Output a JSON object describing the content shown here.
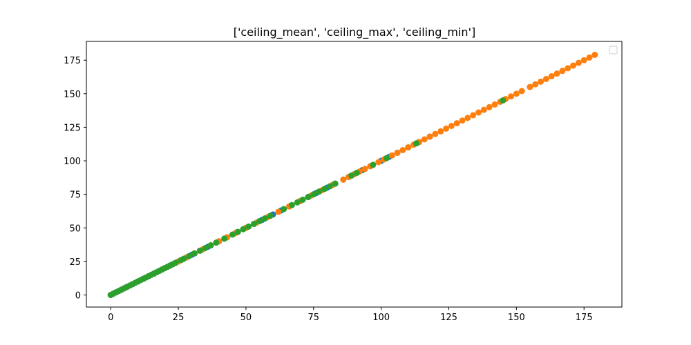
{
  "chart_data": {
    "type": "scatter",
    "title": "['ceiling_mean', 'ceiling_max', 'ceiling_min']",
    "xlabel": "",
    "ylabel": "",
    "xlim": [
      -9,
      189
    ],
    "ylim": [
      -9,
      189
    ],
    "x_ticks": [
      0,
      25,
      50,
      75,
      100,
      125,
      150,
      175
    ],
    "y_ticks": [
      0,
      25,
      50,
      75,
      100,
      125,
      150,
      175
    ],
    "x_tick_labels": [
      "0",
      "25",
      "50",
      "75",
      "100",
      "125",
      "150",
      "175"
    ],
    "y_tick_labels": [
      "0",
      "25",
      "50",
      "75",
      "100",
      "125",
      "150",
      "175"
    ],
    "grid": false,
    "legend": {
      "position": "top-right",
      "entries": []
    },
    "series": [
      {
        "color": "#1f77b4",
        "x": [
          0,
          1,
          2,
          3,
          4,
          5,
          6,
          8,
          10,
          12,
          14,
          16,
          18,
          20,
          22,
          25,
          28,
          30,
          33,
          36,
          40,
          43,
          47,
          50,
          53,
          56,
          60,
          63,
          66,
          70,
          73,
          76,
          80,
          83,
          86,
          88,
          90,
          93,
          96,
          100,
          103,
          106,
          110,
          114,
          118
        ],
        "y": [
          0,
          1,
          2,
          3,
          4,
          5,
          6,
          8,
          10,
          12,
          14,
          16,
          18,
          20,
          22,
          25,
          28,
          30,
          33,
          36,
          40,
          43,
          47,
          50,
          53,
          56,
          60,
          63,
          66,
          70,
          73,
          76,
          80,
          83,
          86,
          88,
          90,
          93,
          96,
          100,
          103,
          106,
          110,
          114,
          118
        ]
      },
      {
        "color": "#ff7f0e",
        "x": [
          0,
          2,
          4,
          6,
          8,
          10,
          13,
          16,
          19,
          22,
          25,
          28,
          31,
          34,
          37,
          40,
          43,
          46,
          50,
          54,
          58,
          62,
          66,
          70,
          74,
          78,
          82,
          86,
          88,
          90,
          92,
          94,
          96,
          99,
          101,
          104,
          106,
          108,
          110,
          112,
          114,
          116,
          118,
          120,
          122,
          124,
          126,
          128,
          130,
          132,
          134,
          136,
          138,
          140,
          142,
          144,
          146,
          148,
          150,
          152,
          155,
          157,
          159,
          161,
          163,
          165,
          167,
          169,
          171,
          173,
          175,
          177,
          179
        ],
        "y": [
          0,
          2,
          4,
          6,
          8,
          10,
          13,
          16,
          19,
          22,
          25,
          28,
          31,
          34,
          37,
          40,
          43,
          46,
          50,
          54,
          58,
          62,
          66,
          70,
          74,
          78,
          82,
          86,
          88,
          90,
          92,
          94,
          96,
          99,
          101,
          104,
          106,
          108,
          110,
          112,
          114,
          116,
          118,
          120,
          122,
          124,
          126,
          128,
          130,
          132,
          134,
          136,
          138,
          140,
          142,
          144,
          146,
          148,
          150,
          152,
          155,
          157,
          159,
          161,
          163,
          165,
          167,
          169,
          171,
          173,
          175,
          177,
          179
        ]
      },
      {
        "color": "#2ca02c",
        "x": [
          0,
          1,
          2,
          3,
          4,
          5,
          6,
          7,
          8,
          9,
          10,
          11,
          12,
          13,
          14,
          15,
          16,
          17,
          18,
          19,
          20,
          21,
          22,
          23,
          24,
          26,
          27,
          29,
          31,
          33,
          35,
          37,
          39,
          42,
          45,
          47,
          49,
          51,
          53,
          55,
          57,
          59,
          64,
          67,
          69,
          71,
          73,
          75,
          77,
          79,
          81,
          83,
          89,
          91,
          97,
          102,
          113,
          145
        ],
        "y": [
          0,
          1,
          2,
          3,
          4,
          5,
          6,
          7,
          8,
          9,
          10,
          11,
          12,
          13,
          14,
          15,
          16,
          17,
          18,
          19,
          20,
          21,
          22,
          23,
          24,
          26,
          27,
          29,
          31,
          33,
          35,
          37,
          39,
          42,
          45,
          47,
          49,
          51,
          53,
          55,
          57,
          59,
          64,
          67,
          69,
          71,
          73,
          75,
          77,
          79,
          81,
          83,
          89,
          91,
          97,
          102,
          113,
          145
        ]
      }
    ]
  }
}
